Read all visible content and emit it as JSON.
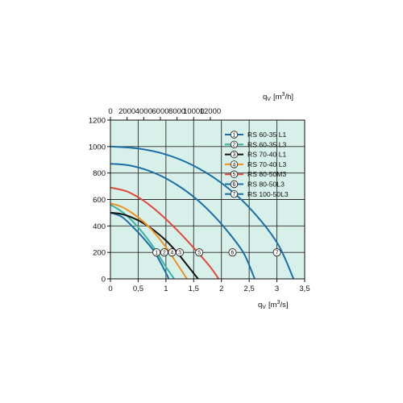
{
  "chart_data": {
    "type": "line",
    "bottom_axis": {
      "label": "q",
      "label_sub": "V",
      "unit": "[m",
      "unit_sup": "3",
      "unit_tail": "/s]",
      "range": [
        0,
        3.5
      ],
      "ticks": [
        "0",
        "0,5",
        "1",
        "1,5",
        "2",
        "2,5",
        "3",
        "3,5"
      ]
    },
    "top_axis": {
      "label": "q",
      "label_sub": "V",
      "unit": "[m",
      "unit_sup": "3",
      "unit_tail": "/h]",
      "ticks": [
        "0",
        "2000",
        "4000",
        "6000",
        "8000",
        "10000",
        "12000"
      ]
    },
    "y_axis": {
      "range": [
        0,
        1200
      ],
      "ticks": [
        "0",
        "200",
        "400",
        "600",
        "800",
        "1000",
        "1200"
      ]
    },
    "grid": true,
    "background": "#d8f0ea",
    "legend_placement": "top-right",
    "series": [
      {
        "marker": "1",
        "name": "RS 60-35 L1",
        "color": "#1b6fa8",
        "x": [
          0,
          0.2,
          0.4,
          0.6,
          0.8,
          1.0,
          1.05
        ],
        "y": [
          500,
          470,
          395,
          305,
          200,
          45,
          0
        ]
      },
      {
        "marker": "2",
        "name": "RS 60-35 L3",
        "color": "#38b4a4",
        "x": [
          0,
          0.2,
          0.4,
          0.6,
          0.8,
          1.0,
          1.15
        ],
        "y": [
          560,
          510,
          435,
          340,
          225,
          90,
          0
        ]
      },
      {
        "marker": "3",
        "name": "RS 70-40 L1",
        "color": "#111111",
        "x": [
          0,
          0.2,
          0.4,
          0.6,
          0.8,
          1.0,
          1.2,
          1.4,
          1.58
        ],
        "y": [
          500,
          490,
          462,
          420,
          362,
          290,
          200,
          95,
          0
        ]
      },
      {
        "marker": "4",
        "name": "RS 70-40 L3",
        "color": "#f0911e",
        "x": [
          0,
          0.2,
          0.4,
          0.6,
          0.8,
          1.0,
          1.2,
          1.38
        ],
        "y": [
          570,
          545,
          495,
          430,
          345,
          240,
          115,
          0
        ]
      },
      {
        "marker": "5",
        "name": "RS 80-50M3",
        "color": "#e2483a",
        "x": [
          0,
          0.3,
          0.6,
          0.9,
          1.2,
          1.5,
          1.8,
          1.95
        ],
        "y": [
          690,
          660,
          590,
          490,
          370,
          235,
          90,
          0
        ]
      },
      {
        "marker": "6",
        "name": "RS 80-50L3",
        "color": "#1b6fa8",
        "x": [
          0,
          0.3,
          0.6,
          0.9,
          1.2,
          1.5,
          1.8,
          2.1,
          2.4,
          2.6
        ],
        "y": [
          870,
          860,
          830,
          780,
          710,
          620,
          505,
          365,
          195,
          0
        ]
      },
      {
        "marker": "7",
        "name": "RS 100-50L3",
        "color": "#1b6fa8",
        "x": [
          0,
          0.5,
          1.0,
          1.5,
          2.0,
          2.5,
          3.0,
          3.3
        ],
        "y": [
          1000,
          985,
          940,
          855,
          725,
          540,
          275,
          0
        ]
      }
    ],
    "marker_points": [
      {
        "label": "1",
        "x": 0.83,
        "y": 200
      },
      {
        "label": "2",
        "x": 0.97,
        "y": 200
      },
      {
        "label": "4",
        "x": 1.11,
        "y": 200
      },
      {
        "label": "3",
        "x": 1.25,
        "y": 200
      },
      {
        "label": "5",
        "x": 1.6,
        "y": 200
      },
      {
        "label": "6",
        "x": 2.2,
        "y": 200
      },
      {
        "label": "7",
        "x": 3.0,
        "y": 200
      }
    ]
  }
}
